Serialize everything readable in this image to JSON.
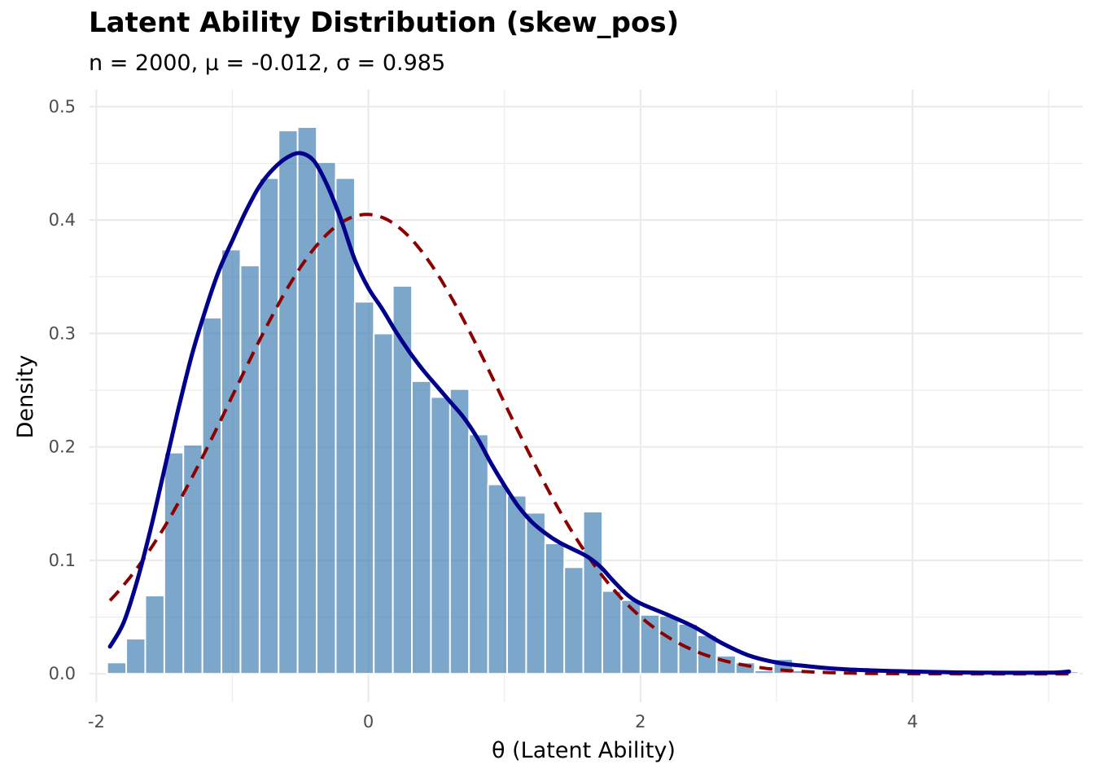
{
  "chart_data": {
    "type": "histogram",
    "title": "Latent Ability Distribution (skew_pos)",
    "subtitle": "n = 2000, μ = -0.012, σ = 0.985",
    "xlabel": "θ (Latent Ability)",
    "ylabel": "Density",
    "xlim": [
      -2.05,
      5.25
    ],
    "ylim": [
      -0.025,
      0.515
    ],
    "x_ticks": [
      {
        "value": -2,
        "label": "-2"
      },
      {
        "value": 0,
        "label": "0"
      },
      {
        "value": 2,
        "label": "2"
      },
      {
        "value": 4,
        "label": "4"
      }
    ],
    "y_ticks": [
      {
        "value": 0.0,
        "label": "0.0"
      },
      {
        "value": 0.1,
        "label": "0.1"
      },
      {
        "value": 0.2,
        "label": "0.2"
      },
      {
        "value": 0.3,
        "label": "0.3"
      },
      {
        "value": 0.4,
        "label": "0.4"
      },
      {
        "value": 0.5,
        "label": "0.5"
      }
    ],
    "grid": true,
    "bin_width": 0.141,
    "bins": [
      {
        "x": -1.85,
        "density": 0.01
      },
      {
        "x": -1.71,
        "density": 0.031
      },
      {
        "x": -1.57,
        "density": 0.069
      },
      {
        "x": -1.43,
        "density": 0.195
      },
      {
        "x": -1.29,
        "density": 0.202
      },
      {
        "x": -1.15,
        "density": 0.314
      },
      {
        "x": -1.01,
        "density": 0.374
      },
      {
        "x": -0.87,
        "density": 0.36
      },
      {
        "x": -0.73,
        "density": 0.437
      },
      {
        "x": -0.59,
        "density": 0.479
      },
      {
        "x": -0.45,
        "density": 0.482
      },
      {
        "x": -0.31,
        "density": 0.451
      },
      {
        "x": -0.17,
        "density": 0.437
      },
      {
        "x": -0.03,
        "density": 0.328
      },
      {
        "x": 0.11,
        "density": 0.3
      },
      {
        "x": 0.25,
        "density": 0.342
      },
      {
        "x": 0.39,
        "density": 0.258
      },
      {
        "x": 0.53,
        "density": 0.244
      },
      {
        "x": 0.67,
        "density": 0.251
      },
      {
        "x": 0.81,
        "density": 0.211
      },
      {
        "x": 0.95,
        "density": 0.167
      },
      {
        "x": 1.09,
        "density": 0.157
      },
      {
        "x": 1.23,
        "density": 0.142
      },
      {
        "x": 1.37,
        "density": 0.115
      },
      {
        "x": 1.51,
        "density": 0.094
      },
      {
        "x": 1.65,
        "density": 0.143
      },
      {
        "x": 1.79,
        "density": 0.073
      },
      {
        "x": 1.93,
        "density": 0.065
      },
      {
        "x": 2.07,
        "density": 0.052
      },
      {
        "x": 2.21,
        "density": 0.051
      },
      {
        "x": 2.35,
        "density": 0.044
      },
      {
        "x": 2.49,
        "density": 0.034
      },
      {
        "x": 2.63,
        "density": 0.016
      },
      {
        "x": 2.77,
        "density": 0.01
      },
      {
        "x": 2.91,
        "density": 0.003
      },
      {
        "x": 3.05,
        "density": 0.013
      },
      {
        "x": 3.19,
        "density": 0.003
      },
      {
        "x": 3.33,
        "density": 0.001
      },
      {
        "x": 3.47,
        "density": 0.001
      },
      {
        "x": 3.61,
        "density": 0.001
      },
      {
        "x": 3.75,
        "density": 0.001
      },
      {
        "x": 3.89,
        "density": 0.001
      },
      {
        "x": 4.03,
        "density": 0.001
      },
      {
        "x": 4.17,
        "density": 0.001
      },
      {
        "x": 4.31,
        "density": 0.001
      },
      {
        "x": 4.45,
        "density": 0.001
      },
      {
        "x": 4.59,
        "density": 0.001
      },
      {
        "x": 4.73,
        "density": 0.001
      },
      {
        "x": 4.87,
        "density": 0.001
      },
      {
        "x": 5.01,
        "density": 0.001
      },
      {
        "x": 5.15,
        "density": 0.002
      }
    ],
    "kde": {
      "x": [
        -1.9,
        -1.8,
        -1.7,
        -1.6,
        -1.5,
        -1.4,
        -1.3,
        -1.2,
        -1.1,
        -1.0,
        -0.9,
        -0.8,
        -0.7,
        -0.6,
        -0.5,
        -0.4,
        -0.3,
        -0.2,
        -0.1,
        0.0,
        0.1,
        0.2,
        0.3,
        0.4,
        0.5,
        0.6,
        0.7,
        0.8,
        0.9,
        1.0,
        1.1,
        1.2,
        1.3,
        1.4,
        1.5,
        1.6,
        1.7,
        1.8,
        1.9,
        2.0,
        2.2,
        2.4,
        2.6,
        2.8,
        3.0,
        3.2,
        3.5,
        4.0,
        4.5,
        5.0,
        5.15
      ],
      "y": [
        0.024,
        0.045,
        0.082,
        0.128,
        0.18,
        0.232,
        0.28,
        0.32,
        0.355,
        0.382,
        0.408,
        0.43,
        0.445,
        0.455,
        0.459,
        0.452,
        0.43,
        0.4,
        0.365,
        0.34,
        0.322,
        0.302,
        0.284,
        0.268,
        0.254,
        0.24,
        0.226,
        0.208,
        0.186,
        0.166,
        0.148,
        0.134,
        0.124,
        0.116,
        0.11,
        0.104,
        0.095,
        0.082,
        0.07,
        0.062,
        0.052,
        0.041,
        0.027,
        0.016,
        0.01,
        0.007,
        0.004,
        0.002,
        0.001,
        0.001,
        0.002
      ],
      "color": "#00008B"
    },
    "normal": {
      "mean": -0.012,
      "sd": 0.985,
      "x_range": [
        -1.9,
        5.15
      ],
      "color": "#8B0000"
    },
    "bar_color": "#4682B4",
    "grid_color": "#EBEBEB"
  }
}
